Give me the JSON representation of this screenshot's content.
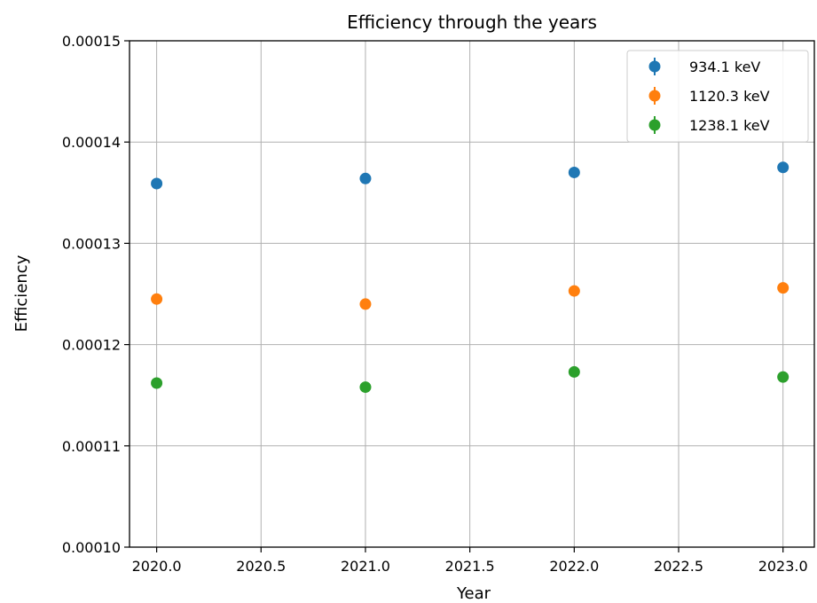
{
  "chart_data": {
    "type": "scatter",
    "title": "Efficiency through the years",
    "xlabel": "Year",
    "ylabel": "Efficiency",
    "xlim": [
      2019.87,
      2023.15
    ],
    "ylim": [
      0.0001,
      0.00015
    ],
    "grid": true,
    "legend_position": "top-right",
    "x_ticks": [
      "2020.0",
      "2020.5",
      "2021.0",
      "2021.5",
      "2022.0",
      "2022.5",
      "2023.0"
    ],
    "x_tick_values": [
      2020.0,
      2020.5,
      2021.0,
      2021.5,
      2022.0,
      2022.5,
      2023.0
    ],
    "y_ticks": [
      "0.00010",
      "0.00011",
      "0.00012",
      "0.00013",
      "0.00014",
      "0.00015"
    ],
    "y_tick_values": [
      0.0001,
      0.00011,
      0.00012,
      0.00013,
      0.00014,
      0.00015
    ],
    "x": [
      2020,
      2021,
      2022,
      2023
    ],
    "series": [
      {
        "name": "934.1 keV",
        "color": "#1f77b4",
        "values": [
          0.0001359,
          0.0001364,
          0.000137,
          0.0001375
        ]
      },
      {
        "name": "1120.3 keV",
        "color": "#ff7f0e",
        "values": [
          0.0001245,
          0.000124,
          0.0001253,
          0.0001256
        ]
      },
      {
        "name": "1238.1 keV",
        "color": "#2ca02c",
        "values": [
          0.0001162,
          0.0001158,
          0.0001173,
          0.0001168
        ]
      }
    ]
  }
}
